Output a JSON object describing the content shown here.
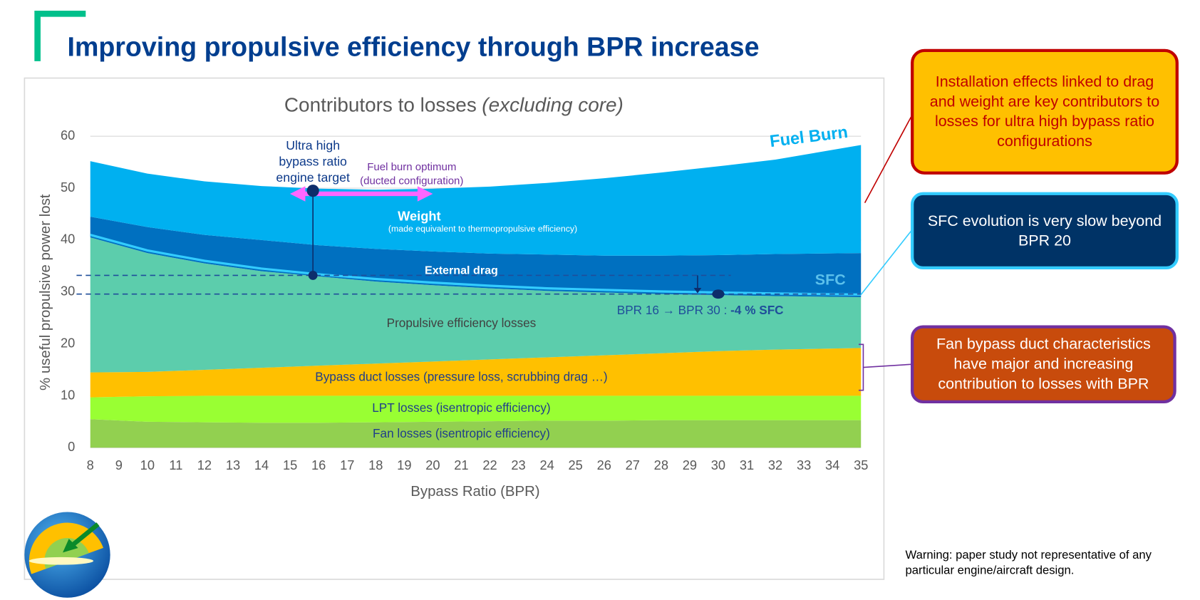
{
  "header": {
    "title": "Improving propulsive efficiency through BPR increase"
  },
  "chart_data": {
    "type": "stacked-area",
    "title": "Contributors to losses",
    "title_note": "(excluding core)",
    "x_label": "Bypass Ratio (BPR)",
    "y_label": "% useful propulsive power lost",
    "x": [
      8,
      10,
      12,
      14,
      16,
      18,
      20,
      22,
      24,
      26,
      28,
      30,
      32,
      35
    ],
    "xlim": [
      8,
      35
    ],
    "xticks": [
      8,
      9,
      10,
      11,
      12,
      13,
      14,
      15,
      16,
      17,
      18,
      19,
      20,
      21,
      22,
      23,
      24,
      25,
      26,
      27,
      28,
      29,
      30,
      31,
      32,
      33,
      34,
      35
    ],
    "ylim": [
      0,
      60
    ],
    "yticks": [
      0,
      10,
      20,
      30,
      40,
      50,
      60
    ],
    "grid": true,
    "series": [
      {
        "name": "Fan losses (isentropic efficiency)",
        "color": "#92d050",
        "label_color": "#1f3e8a",
        "values": [
          5.5,
          5.0,
          4.9,
          4.8,
          4.8,
          4.9,
          5.0,
          5.1,
          5.2,
          5.2,
          5.3,
          5.3,
          5.3,
          5.3
        ]
      },
      {
        "name": "LPT losses (isentropic efficiency)",
        "color": "#99ff33",
        "label_color": "#1f3e8a",
        "values": [
          4.2,
          4.9,
          5.1,
          5.2,
          5.2,
          5.1,
          5.0,
          4.9,
          4.8,
          4.8,
          4.7,
          4.7,
          4.7,
          4.7
        ]
      },
      {
        "name": "Bypass duct losses (pressure loss, scrubbing drag …)",
        "color": "#ffc000",
        "label_color": "#1f3e8a",
        "values": [
          4.8,
          4.7,
          5.0,
          5.4,
          5.8,
          6.2,
          6.6,
          7.0,
          7.4,
          7.8,
          8.2,
          8.6,
          8.9,
          9.2
        ]
      },
      {
        "name": "Propulsive efficiency losses",
        "color": "#5ccdac",
        "label_color": "#404040",
        "values": [
          26.0,
          22.9,
          20.5,
          18.6,
          17.2,
          15.8,
          14.7,
          13.7,
          12.8,
          12.1,
          11.4,
          10.8,
          10.3,
          9.8
        ]
      },
      {
        "name": "External drag",
        "color": "#0070c0",
        "label_color": "#ffffff",
        "values": [
          4.0,
          5.0,
          5.5,
          6.0,
          6.0,
          6.3,
          6.5,
          6.7,
          7.0,
          7.1,
          7.4,
          7.7,
          8.1,
          8.5
        ]
      },
      {
        "name": "Weight",
        "note": "(made equivalent to thermopropulsive efficiency)",
        "color": "#00b0f0",
        "label_color": "#ffffff",
        "values": [
          10.7,
          10.3,
          10.3,
          10.4,
          10.9,
          11.4,
          12.1,
          12.9,
          13.8,
          14.9,
          16.0,
          17.1,
          18.2,
          20.8
        ]
      }
    ],
    "sfc": {
      "name": "SFC",
      "color": "#33ccff",
      "values": [
        41.0,
        38.0,
        36.0,
        34.5,
        33.4,
        32.5,
        31.8,
        31.2,
        30.7,
        30.4,
        30.1,
        29.9,
        29.7,
        29.5
      ]
    },
    "total_label": "Fuel Burn",
    "ref_lines": [
      33.2,
      29.6
    ],
    "target": {
      "x": 15.8,
      "y": 49.5
    },
    "target_label": [
      "Ultra high",
      "bypass ratio",
      "engine target"
    ],
    "optimum_range": [
      15.8,
      20
    ],
    "optimum_label": [
      "Fuel burn optimum",
      "(ducted configuration)"
    ],
    "sfc_point": {
      "x": 30,
      "y": 29.6
    },
    "sfc_gain_label": "BPR 16 → BPR 30 : ",
    "sfc_gain_value": "-4 % SFC"
  },
  "callouts": [
    "Installation effects linked to drag and weight are key contributors to losses for ultra high bypass ratio configurations",
    "SFC evolution  is very slow beyond BPR 20",
    "Fan bypass duct characteristics have major and increasing contribution to losses with BPR"
  ],
  "warning": "Warning: paper study not representative of any particular engine/aircraft design."
}
